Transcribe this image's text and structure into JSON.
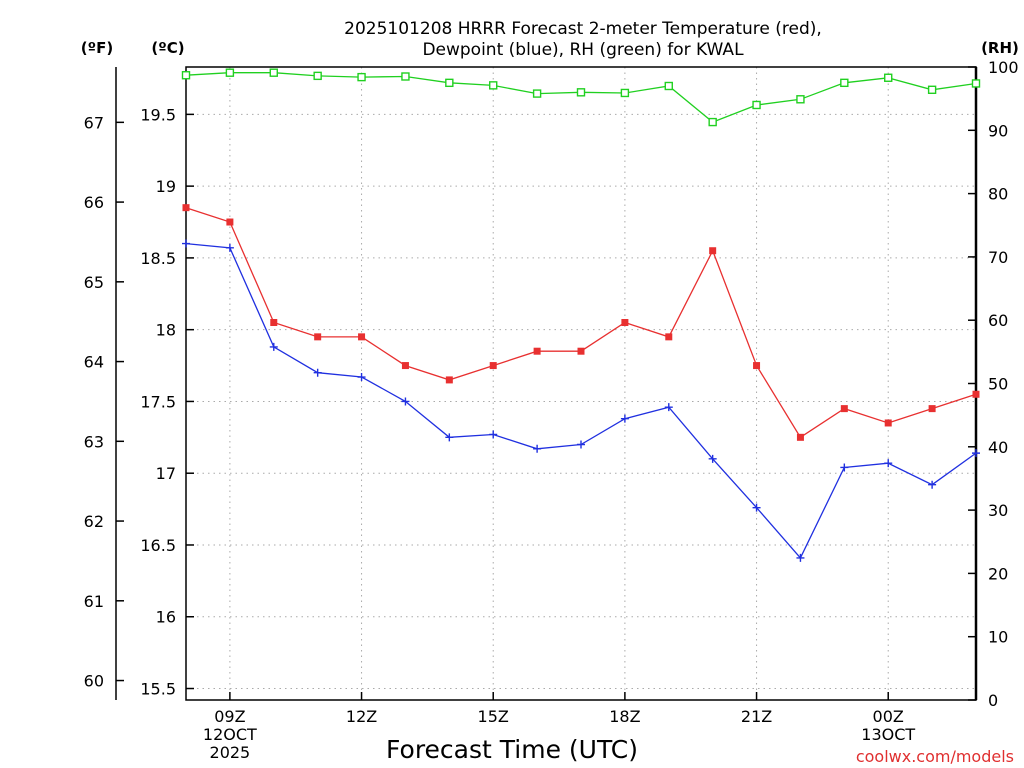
{
  "chart_data": {
    "type": "line",
    "title_lines": [
      "2025101208 HRRR Forecast 2-meter Temperature (red),",
      "Dewpoint (blue), RH (green) for KWAL"
    ],
    "unit_labels": {
      "fahrenheit": "(ºF)",
      "celsius": "(ºC)",
      "rh": "(RH)"
    },
    "xlabel": "Forecast Time (UTC)",
    "credit": "coolwx.com/models",
    "x_hours": [
      8,
      9,
      10,
      11,
      12,
      13,
      14,
      15,
      16,
      17,
      18,
      19,
      20,
      21,
      22,
      23,
      24,
      25,
      26
    ],
    "x_range": [
      8,
      26
    ],
    "x_ticks": [
      {
        "hour": 9,
        "lines": [
          "09Z",
          "12OCT",
          "2025"
        ]
      },
      {
        "hour": 12,
        "lines": [
          "12Z"
        ]
      },
      {
        "hour": 15,
        "lines": [
          "15Z"
        ]
      },
      {
        "hour": 18,
        "lines": [
          "18Z"
        ]
      },
      {
        "hour": 21,
        "lines": [
          "21Z"
        ]
      },
      {
        "hour": 24,
        "lines": [
          "00Z",
          "13OCT"
        ]
      }
    ],
    "y_celsius": {
      "range": [
        15.42,
        19.83
      ],
      "ticks": [
        15.5,
        16,
        16.5,
        17,
        17.5,
        18,
        18.5,
        19,
        19.5
      ],
      "tick_labels": [
        "15.5",
        "16",
        "16.5",
        "17",
        "17.5",
        "18",
        "18.5",
        "19",
        "19.5"
      ]
    },
    "y_fahrenheit": {
      "ticks": [
        60,
        61,
        62,
        63,
        64,
        65,
        66,
        67
      ],
      "tick_labels": [
        "60",
        "61",
        "62",
        "63",
        "64",
        "65",
        "66",
        "67"
      ]
    },
    "y_rh": {
      "range": [
        0,
        100
      ],
      "ticks": [
        0,
        10,
        20,
        30,
        40,
        50,
        60,
        70,
        80,
        90,
        100
      ],
      "tick_labels": [
        "0",
        "10",
        "20",
        "30",
        "40",
        "50",
        "60",
        "70",
        "80",
        "90",
        "100"
      ]
    },
    "series": [
      {
        "name": "Temperature",
        "axis": "celsius",
        "color": "#e83030",
        "marker": "filled-square",
        "values": [
          18.85,
          18.75,
          18.05,
          17.95,
          17.95,
          17.75,
          17.65,
          17.75,
          17.85,
          17.85,
          18.05,
          17.95,
          18.55,
          17.75,
          17.25,
          17.45,
          17.35,
          17.45,
          17.55
        ]
      },
      {
        "name": "Dewpoint",
        "axis": "celsius",
        "color": "#2030e0",
        "marker": "plus",
        "values": [
          18.6,
          18.57,
          17.88,
          17.7,
          17.67,
          17.5,
          17.25,
          17.27,
          17.17,
          17.2,
          17.38,
          17.46,
          17.1,
          16.76,
          16.41,
          17.04,
          17.07,
          16.92,
          17.14
        ]
      },
      {
        "name": "RH",
        "axis": "rh",
        "color": "#20d020",
        "marker": "open-square",
        "values": [
          98.7,
          99.1,
          99.1,
          98.6,
          98.4,
          98.5,
          97.5,
          97.1,
          95.8,
          96.0,
          95.9,
          97.0,
          91.3,
          94.0,
          94.9,
          97.5,
          98.3,
          96.4,
          97.4
        ]
      }
    ]
  }
}
